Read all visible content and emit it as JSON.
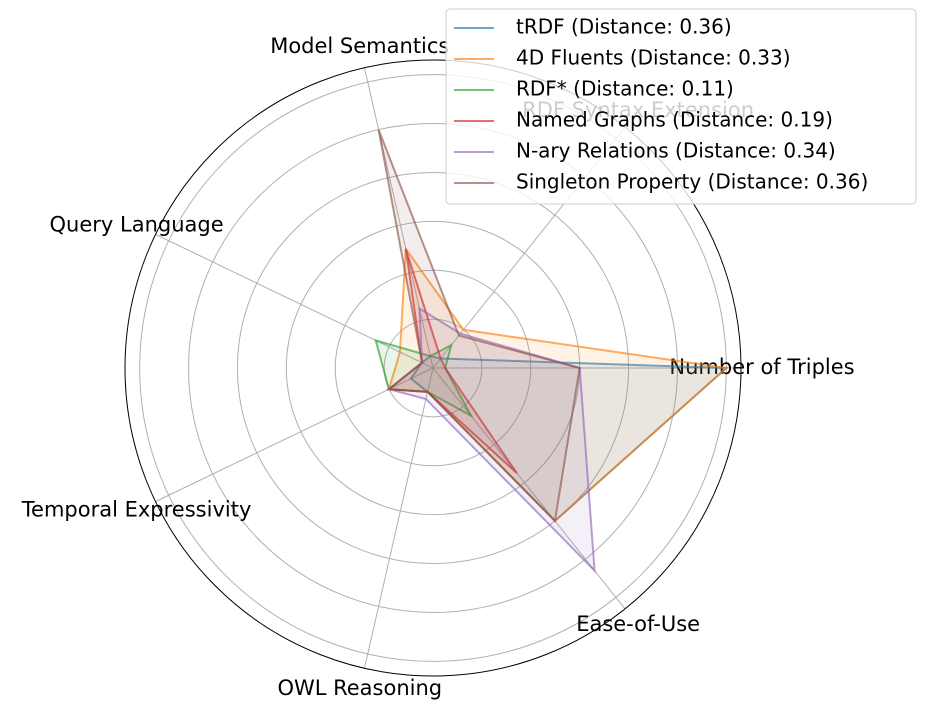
{
  "chart_data": {
    "type": "radar",
    "categories": [
      "Number of Triples",
      "RDF Syntax Extension",
      "Model Semantics",
      "Query Language",
      "Temporal Expressivity",
      "OWL Reasoning",
      "Ease-of-Use"
    ],
    "ylim": [
      0,
      1.26
    ],
    "yticks": [
      0.2,
      0.4,
      0.6,
      0.8,
      1.0,
      1.2
    ],
    "grid": true,
    "legend": "upper right",
    "series": [
      {
        "name": "tRDF (Distance: 0.36)",
        "color": "#1f77b4",
        "values": [
          1.2,
          0.05,
          0.05,
          0.05,
          0.1,
          0.1,
          0.8
        ]
      },
      {
        "name": "4D Fluents (Distance: 0.33)",
        "color": "#ff7f0e",
        "values": [
          1.2,
          0.2,
          0.5,
          0.15,
          0.2,
          0.1,
          0.8
        ]
      },
      {
        "name": "RDF* (Distance: 0.11)",
        "color": "#2ca02c",
        "values": [
          0.05,
          0.12,
          0.05,
          0.26,
          0.2,
          0.1,
          0.25
        ]
      },
      {
        "name": "Named Graphs (Distance: 0.19)",
        "color": "#d62728",
        "values": [
          0.05,
          0.05,
          0.5,
          0.05,
          0.2,
          0.1,
          0.55
        ]
      },
      {
        "name": "N-ary Relations (Distance: 0.34)",
        "color": "#9467bd",
        "values": [
          0.6,
          0.18,
          0.25,
          0.05,
          0.2,
          0.13,
          1.06
        ]
      },
      {
        "name": "Singleton Property (Distance: 0.36)",
        "color": "#8c564b",
        "values": [
          0.6,
          0.17,
          1.0,
          0.05,
          0.2,
          0.1,
          0.8
        ]
      }
    ]
  }
}
